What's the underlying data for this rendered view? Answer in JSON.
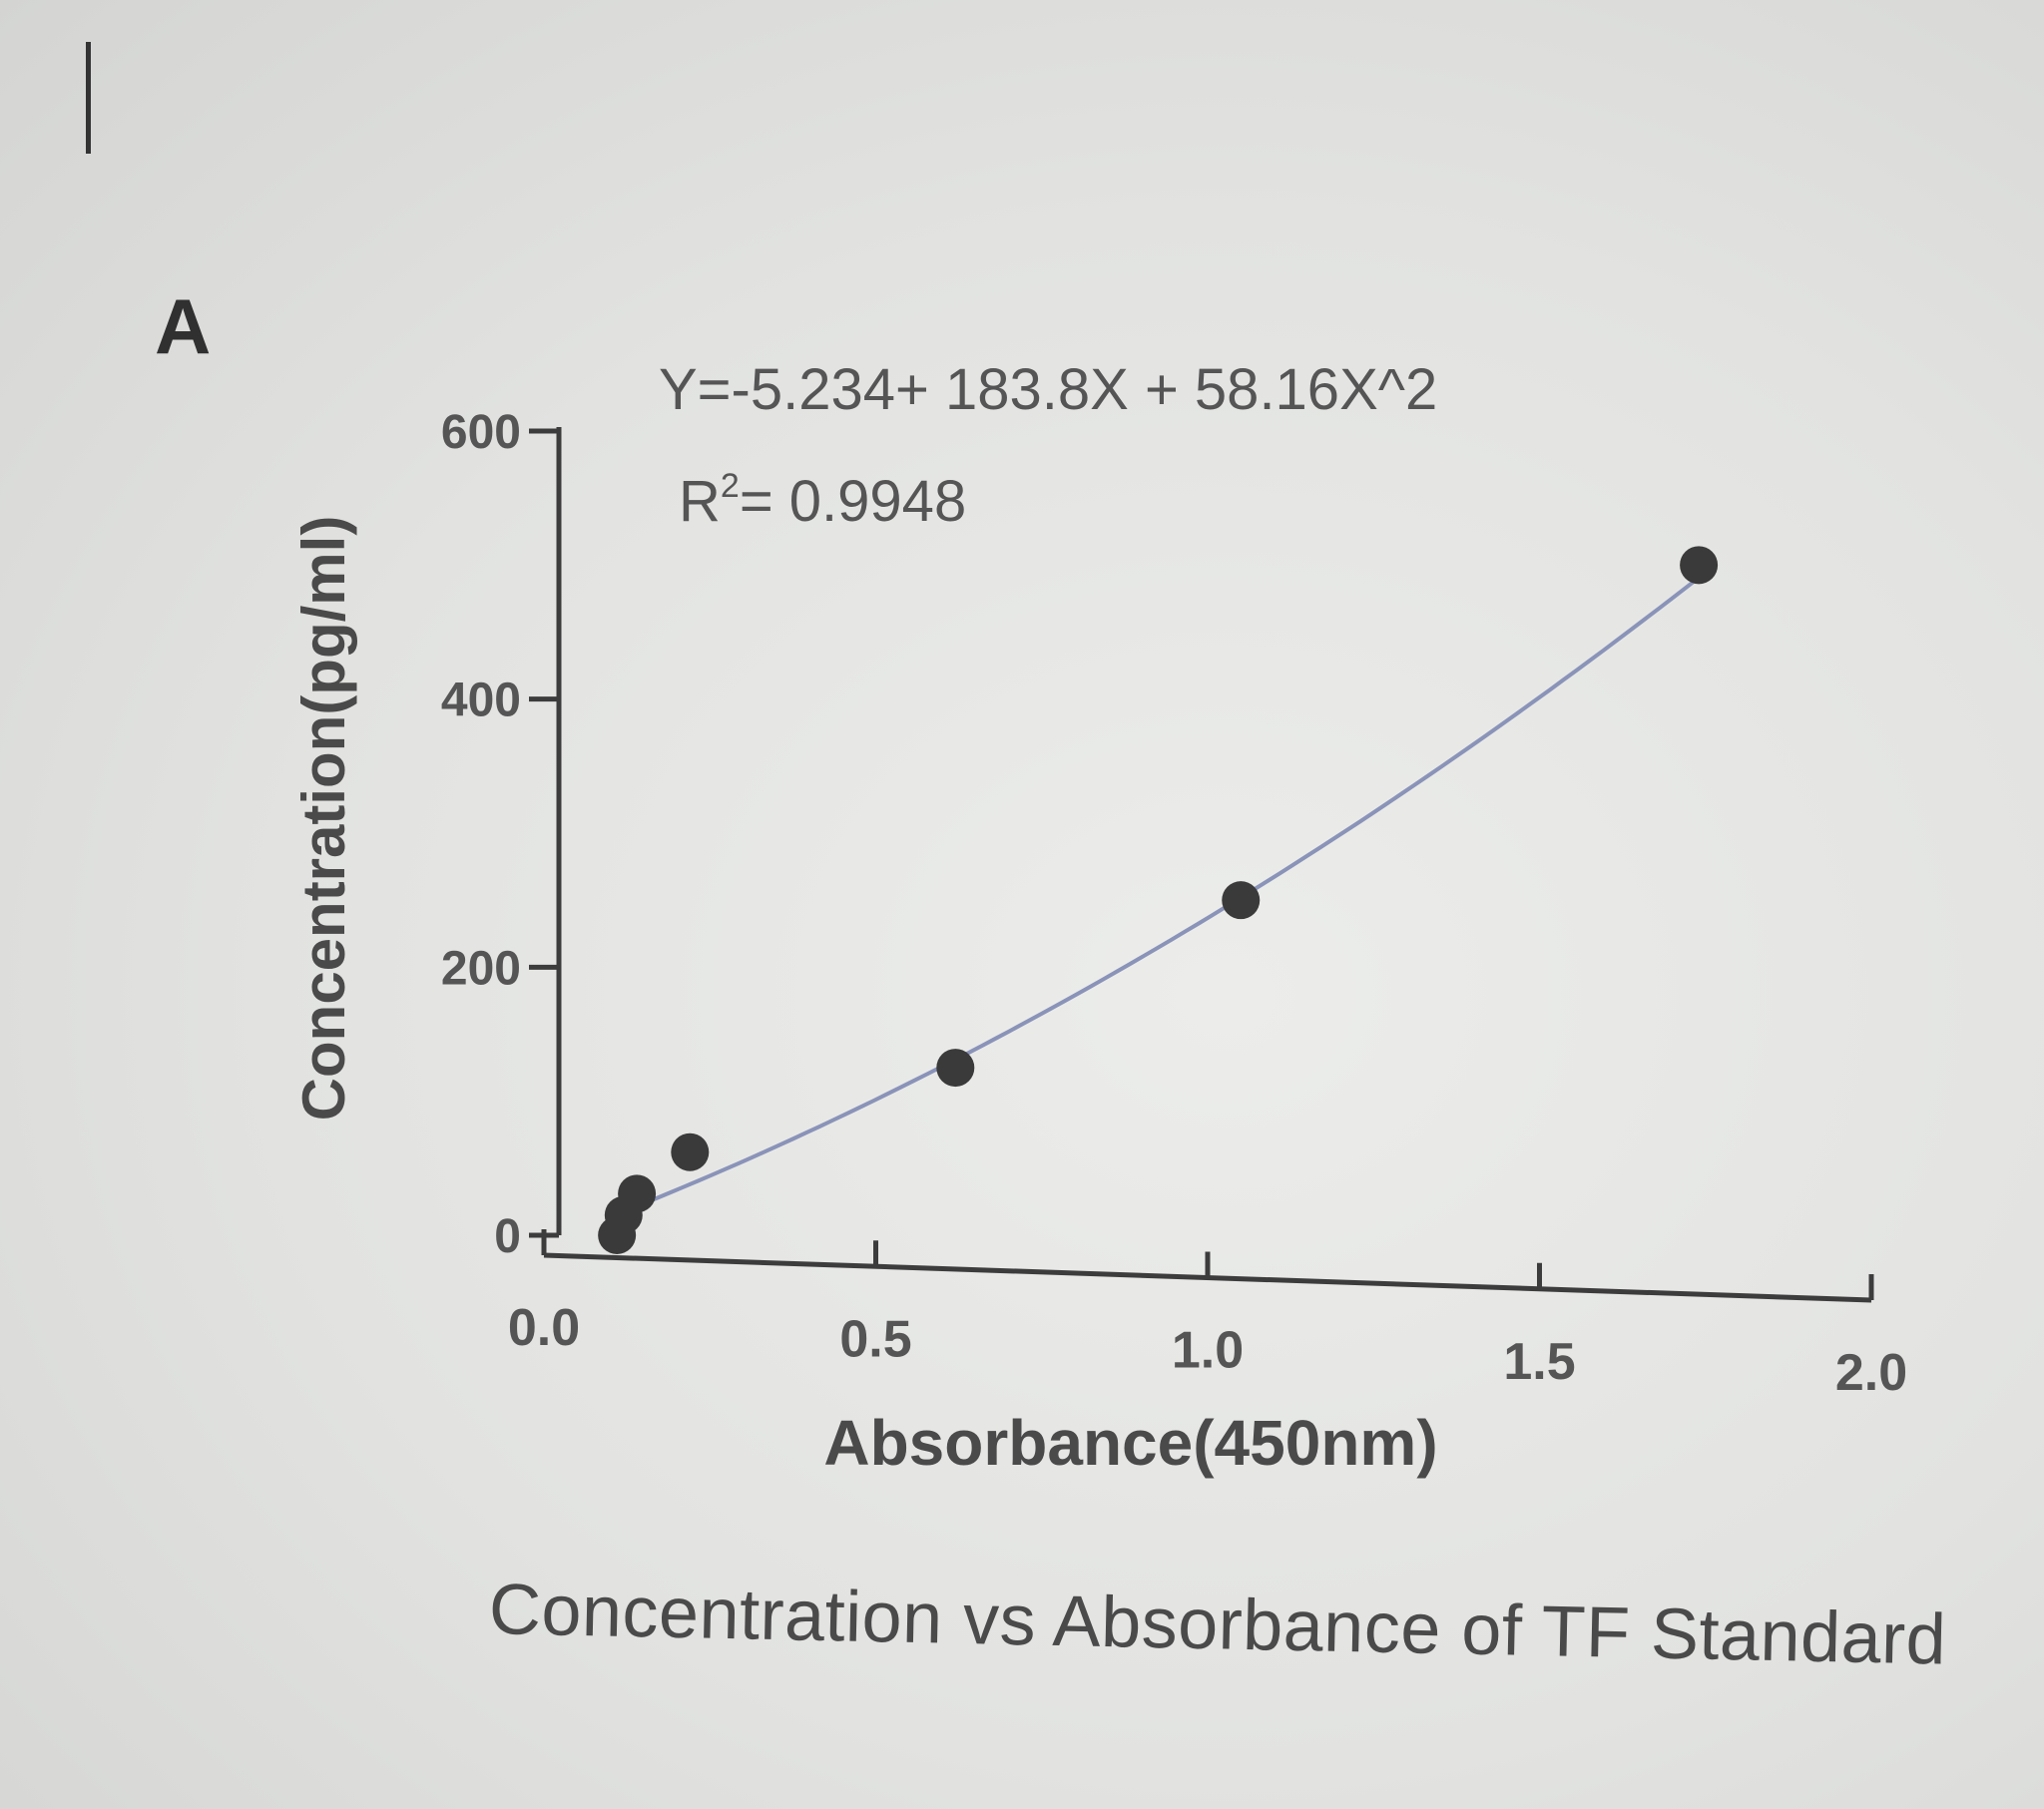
{
  "panel_label": "A",
  "caption": "Concentration vs Absorbance of TF Standard",
  "chart_data": {
    "type": "scatter",
    "equation": "Y=-5.234+ 183.8X + 58.16X^2",
    "r2_label": "R",
    "r2_exp": "2",
    "r2_value": "= 0.9948",
    "fit_coefficients": [
      -5.234,
      183.8,
      58.16
    ],
    "xlabel": "Absorbance(450nm)",
    "ylabel": "Concentration(pg/ml)",
    "xlim": [
      0,
      2.0
    ],
    "ylim": [
      0,
      600
    ],
    "xticks": [
      "0.0",
      "0.5",
      "1.0",
      "1.5",
      "2.0"
    ],
    "yticks": [
      "0",
      "200",
      "400",
      "600"
    ],
    "points": [
      {
        "x": 0.11,
        "y": 0
      },
      {
        "x": 0.12,
        "y": 15
      },
      {
        "x": 0.14,
        "y": 31
      },
      {
        "x": 0.22,
        "y": 62
      },
      {
        "x": 0.62,
        "y": 125
      },
      {
        "x": 1.05,
        "y": 250
      },
      {
        "x": 1.74,
        "y": 500
      }
    ],
    "colors": {
      "points": "#3a3a3a",
      "curve": "#8a93b8",
      "axis": "#3c3c3c",
      "text": "#555555"
    },
    "grid": false,
    "legend": "none"
  }
}
